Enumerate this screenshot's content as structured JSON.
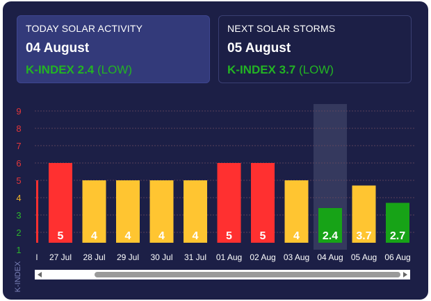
{
  "today": {
    "label": "TODAY SOLAR ACTIVITY",
    "date": "04 August",
    "k_label": "K-INDEX 2.4",
    "level": "(LOW)"
  },
  "next": {
    "label": "NEXT SOLAR STORMS",
    "date": "05 August",
    "k_label": "K-INDEX 3.7",
    "level": "(LOW)"
  },
  "colors": {
    "background": "#1c1f46",
    "low": "#17a317",
    "moderate": "#ffc531",
    "high": "#ff3030",
    "axis_low": "#2cb52c",
    "axis_moderate": "#f0b42a",
    "axis_high": "#e3363a",
    "highlight": "#4a4e72"
  },
  "chart_data": {
    "type": "bar",
    "ylabel": "K-INDEX",
    "ylim": [
      1,
      9
    ],
    "yticks": [
      1,
      2,
      3,
      4,
      5,
      6,
      7,
      8,
      9
    ],
    "grid": true,
    "highlight_category": "04 Aug",
    "leading_partial_category": "l",
    "categories": [
      "27 Jul",
      "28 Jul",
      "29 Jul",
      "30 Jul",
      "31 Jul",
      "01 Aug",
      "02 Aug",
      "03 Aug",
      "04 Aug",
      "05 Aug",
      "06 Aug"
    ],
    "values": [
      5,
      4,
      4,
      4,
      4,
      5,
      5,
      4,
      2.4,
      3.7,
      2.7
    ],
    "labels": [
      "5",
      "4",
      "4",
      "4",
      "4",
      "5",
      "5",
      "4",
      "2.4",
      "3.7",
      "2.7"
    ],
    "partial_bar_value": 5
  }
}
